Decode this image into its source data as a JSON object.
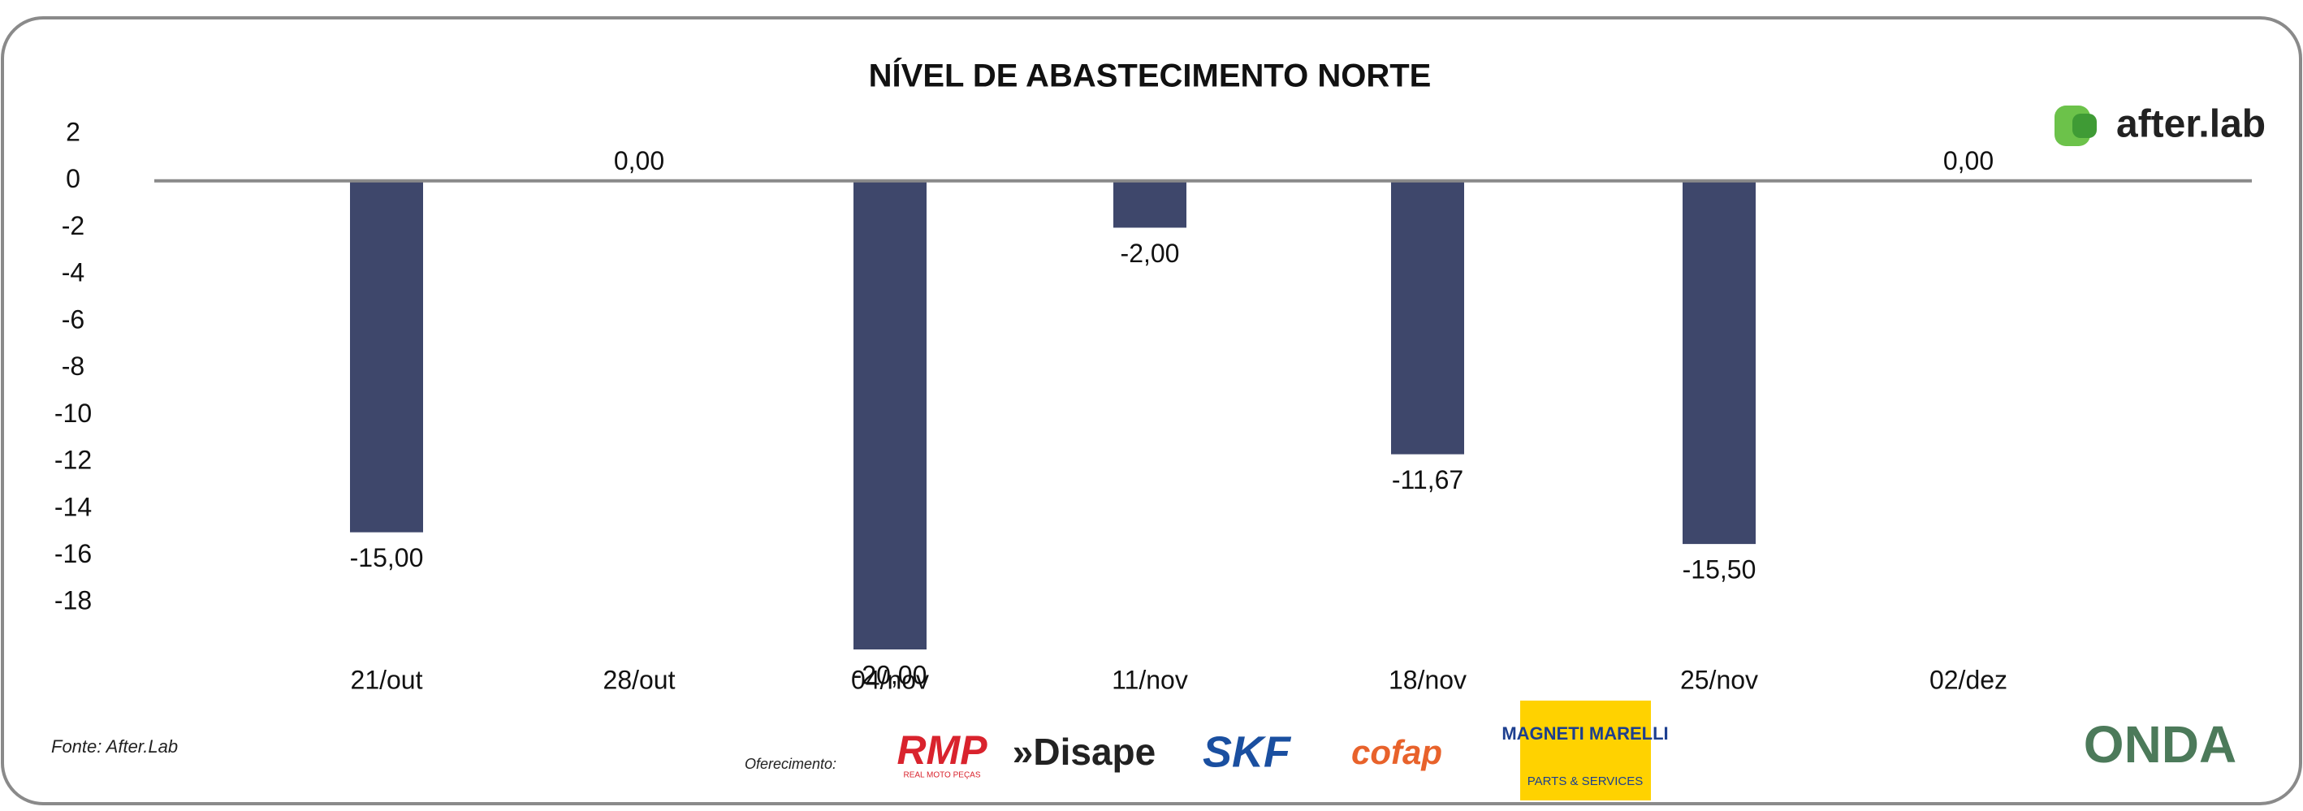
{
  "chart_data": {
    "type": "bar",
    "title": "NÍVEL DE ABASTECIMENTO NORTE",
    "categories": [
      "21/out",
      "28/out",
      "04/nov",
      "11/nov",
      "18/nov",
      "25/nov",
      "02/dez"
    ],
    "values": [
      -15,
      0,
      -20,
      -2,
      -11.67,
      -15.5,
      0
    ],
    "value_labels": [
      "-15,00",
      "0,00",
      "-20,00",
      "-2,00",
      "-11,67",
      "-15,50",
      "0,00"
    ],
    "color": "#3e476b",
    "ylim": [
      -20,
      2
    ],
    "yticks": [
      2,
      0,
      -2,
      -4,
      -6,
      -8,
      -10,
      -12,
      -14,
      -16,
      -18
    ],
    "grid": false
  },
  "source": "Fonte: After.Lab",
  "sponsor_label": "Oferecimento:",
  "brand": "after.lab",
  "sponsors": [
    "RMP",
    "REAL MOTO PEÇAS",
    "»Disape",
    "SKF",
    "cofap",
    "MAGNETI MARELLI",
    "PARTS & SERVICES",
    "ONDA"
  ]
}
